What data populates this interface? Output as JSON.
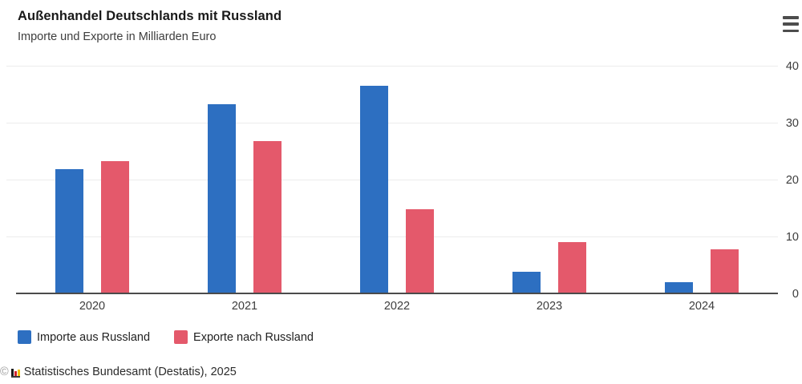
{
  "header": {
    "title": "Außenhandel Deutschlands mit Russland",
    "subtitle": "Importe und Exporte in Milliarden Euro",
    "menu_icon": "hamburger-menu-icon"
  },
  "chart_data": {
    "type": "bar",
    "categories": [
      "2020",
      "2021",
      "2022",
      "2023",
      "2024"
    ],
    "series": [
      {
        "name": "Importe aus Russland",
        "color": "#2d6fc1",
        "values": [
          21.7,
          33.1,
          36.4,
          3.7,
          1.8
        ]
      },
      {
        "name": "Exporte nach Russland",
        "color": "#e4596b",
        "values": [
          23.1,
          26.6,
          14.6,
          8.9,
          7.6
        ]
      }
    ],
    "title": "Außenhandel Deutschlands mit Russland",
    "subtitle": "Importe und Exporte in Milliarden Euro",
    "xlabel": "",
    "ylabel": "",
    "ylim": [
      0,
      40
    ],
    "yticks": [
      0,
      10,
      20,
      30,
      40
    ],
    "grid": true,
    "legend_position": "bottom"
  },
  "legend": {
    "items": [
      {
        "label": "Importe aus Russland",
        "color": "#2d6fc1"
      },
      {
        "label": "Exporte nach Russland",
        "color": "#e4596b"
      }
    ]
  },
  "footer": {
    "copyright_symbol": "©",
    "logo_icon": "destatis-bar-chart-logo",
    "source_text": "Statistisches Bundesamt (Destatis), 2025"
  }
}
